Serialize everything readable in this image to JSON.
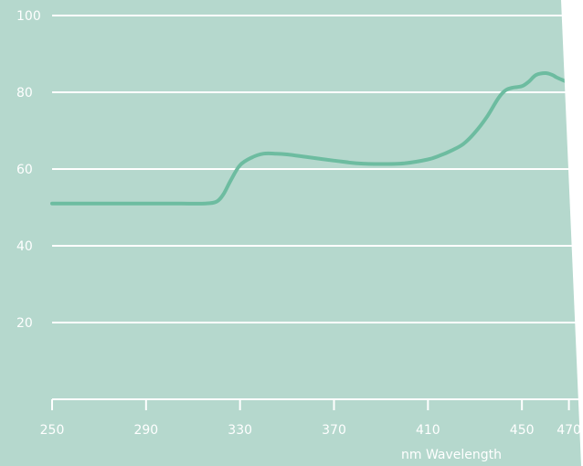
{
  "chart_data": {
    "type": "line",
    "xlabel": "nm Wavelength",
    "ylabel": "",
    "xlim": [
      250,
      476
    ],
    "ylim": [
      0,
      100
    ],
    "x_ticks": [
      250,
      290,
      330,
      370,
      410,
      450,
      470
    ],
    "y_ticks": [
      20,
      40,
      60,
      80,
      100
    ],
    "grid": true,
    "colors": {
      "line": "#6dbca0",
      "grid": "#ffffff",
      "background": "#b5d8cd",
      "border": "#ffffff"
    },
    "series": [
      {
        "x": [
          250,
          265,
          280,
          295,
          305,
          315,
          320,
          323,
          326,
          330,
          335,
          340,
          345,
          350,
          360,
          370,
          380,
          390,
          400,
          410,
          415,
          420,
          425,
          430,
          435,
          440,
          443,
          446,
          450,
          453,
          456,
          460,
          463,
          465,
          470,
          476
        ],
        "values": [
          51,
          51,
          51,
          51,
          51,
          51,
          51.5,
          53.5,
          57,
          61,
          63,
          64,
          64,
          63.8,
          63,
          62.2,
          61.5,
          61.3,
          61.5,
          62.5,
          63.5,
          64.8,
          66.5,
          69.5,
          73.5,
          78.5,
          80.5,
          81.2,
          81.6,
          82.8,
          84.5,
          85,
          84.5,
          83.8,
          82.5,
          81
        ]
      }
    ]
  }
}
